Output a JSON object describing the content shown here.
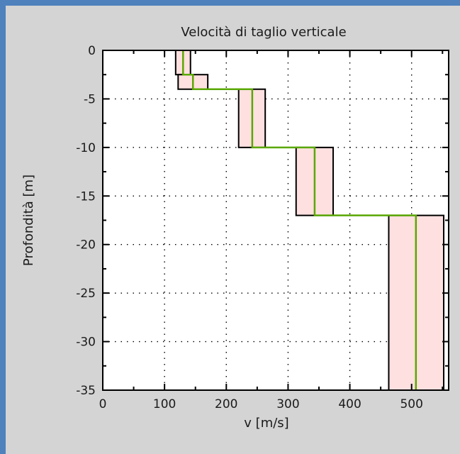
{
  "chart_data": {
    "type": "line",
    "title": "Velocità di taglio verticale",
    "xlabel": "v [m/s]",
    "ylabel": "Profondità [m]",
    "xlim": [
      0,
      560
    ],
    "ylim": [
      -35,
      0
    ],
    "xticks": [
      0,
      100,
      200,
      300,
      400,
      500
    ],
    "yticks": [
      0,
      -5,
      -10,
      -15,
      -20,
      -25,
      -30,
      -35
    ],
    "grid": true,
    "colors": {
      "band_fill": "#ffe0e0",
      "band_edge": "#000000",
      "mean_line": "#5aa800",
      "grid": "#000000"
    },
    "layers": [
      {
        "top": 0,
        "bottom": -2.5,
        "vmin": 118,
        "vmax": 142,
        "vmean": 130
      },
      {
        "top": -2.5,
        "bottom": -4,
        "vmin": 122,
        "vmax": 170,
        "vmean": 146
      },
      {
        "top": -4,
        "bottom": -10,
        "vmin": 220,
        "vmax": 263,
        "vmean": 242
      },
      {
        "top": -10,
        "bottom": -17,
        "vmin": 313,
        "vmax": 373,
        "vmean": 343
      },
      {
        "top": -17,
        "bottom": -35,
        "vmin": 463,
        "vmax": 552,
        "vmean": 507
      }
    ]
  }
}
